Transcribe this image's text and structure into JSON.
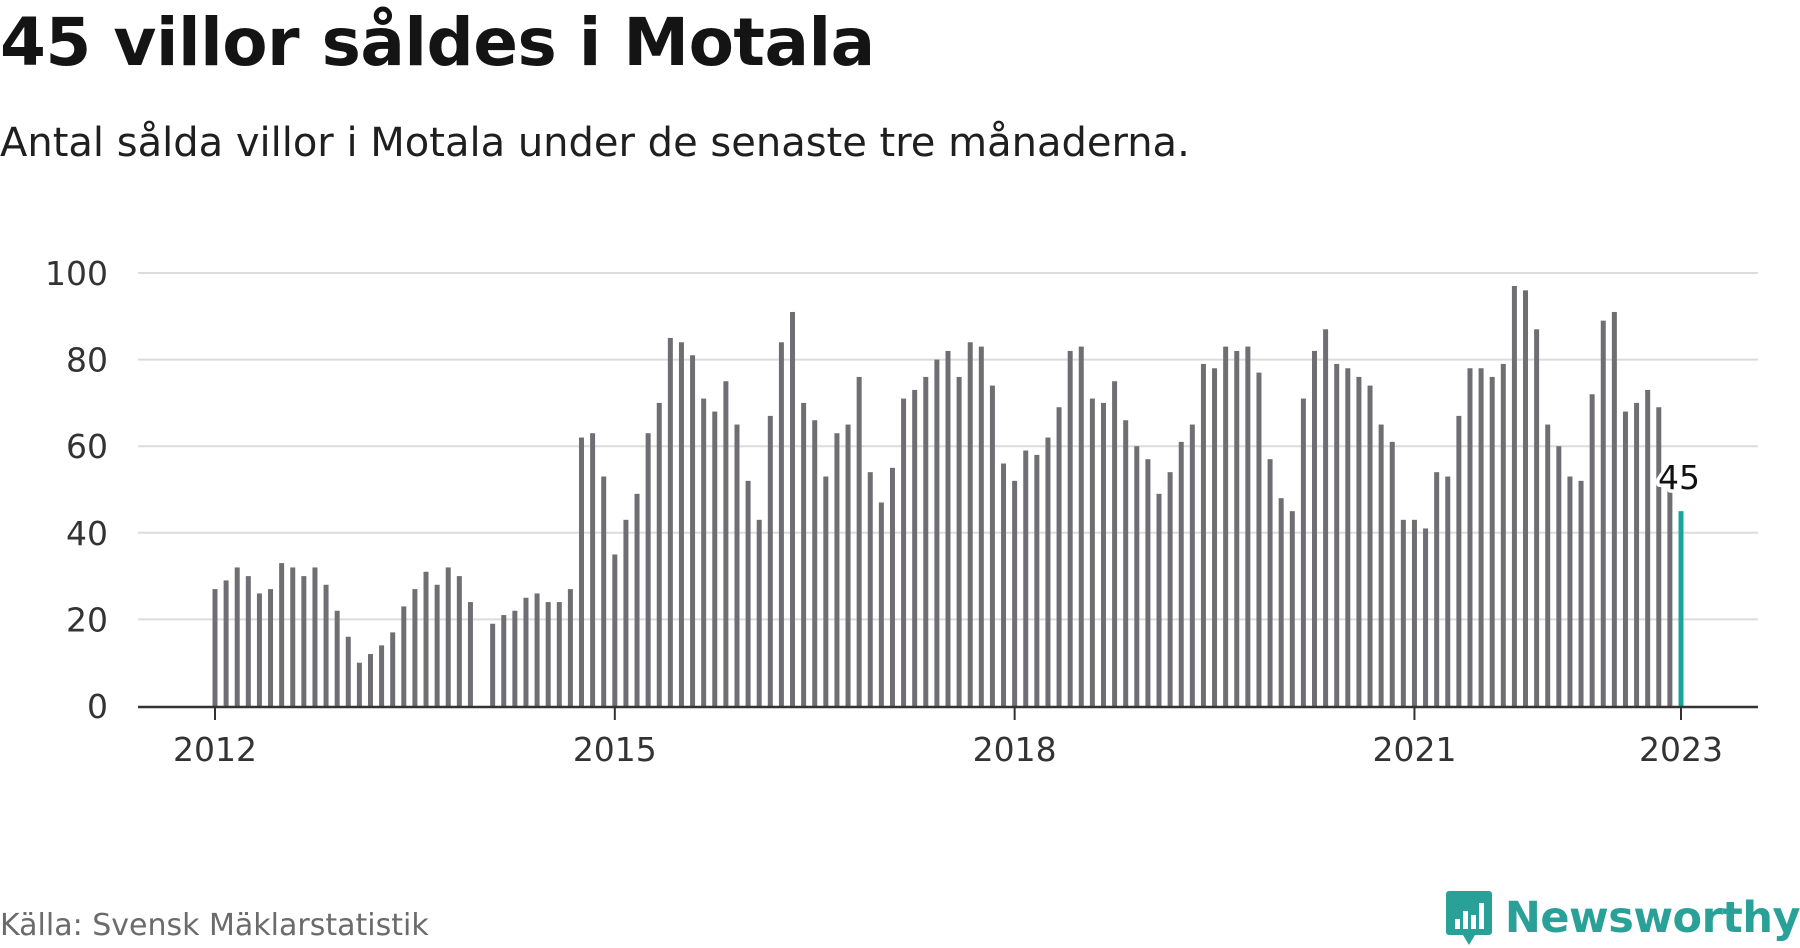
{
  "title": "45 villor såldes i Motala",
  "subtitle": "Antal sålda villor i Motala under de senaste tre månaderna.",
  "source": "Källa: Svensk Mäklarstatistik",
  "brand": {
    "name": "Newsworthy",
    "icon": "chart-speech-bubble-icon"
  },
  "colors": {
    "bar": "#6f6f73",
    "highlight": "#1aa59b",
    "grid": "#dcdcdc",
    "axis": "#333333",
    "brand": "#2aa198"
  },
  "chart_data": {
    "type": "bar",
    "title": "45 villor såldes i Motala",
    "subtitle": "Antal sålda villor i Motala under de senaste tre månaderna.",
    "xlabel": "",
    "ylabel": "",
    "ylim": [
      0,
      100
    ],
    "yticks": [
      0,
      20,
      40,
      60,
      80,
      100
    ],
    "xtick_labels": [
      "2012",
      "2015",
      "2018",
      "2021",
      "2023"
    ],
    "grid": true,
    "legend": "none",
    "x": [
      "2012-01",
      "2012-02",
      "2012-03",
      "2012-04",
      "2012-05",
      "2012-06",
      "2012-07",
      "2012-08",
      "2012-09",
      "2012-10",
      "2012-11",
      "2012-12",
      "2013-01",
      "2013-02",
      "2013-03",
      "2013-04",
      "2013-05",
      "2013-06",
      "2013-07",
      "2013-08",
      "2013-09",
      "2013-10",
      "2013-11",
      "2013-12",
      "2014-01",
      "2014-02",
      "2014-03",
      "2014-04",
      "2014-05",
      "2014-06",
      "2014-07",
      "2014-08",
      "2014-09",
      "2014-10",
      "2014-11",
      "2014-12",
      "2015-01",
      "2015-02",
      "2015-03",
      "2015-04",
      "2015-05",
      "2015-06",
      "2015-07",
      "2015-08",
      "2015-09",
      "2015-10",
      "2015-11",
      "2015-12",
      "2016-01",
      "2016-02",
      "2016-03",
      "2016-04",
      "2016-05",
      "2016-06",
      "2016-07",
      "2016-08",
      "2016-09",
      "2016-10",
      "2016-11",
      "2016-12",
      "2017-01",
      "2017-02",
      "2017-03",
      "2017-04",
      "2017-05",
      "2017-06",
      "2017-07",
      "2017-08",
      "2017-09",
      "2017-10",
      "2017-11",
      "2017-12",
      "2018-01",
      "2018-02",
      "2018-03",
      "2018-04",
      "2018-05",
      "2018-06",
      "2018-07",
      "2018-08",
      "2018-09",
      "2018-10",
      "2018-11",
      "2018-12",
      "2019-01",
      "2019-02",
      "2019-03",
      "2019-04",
      "2019-05",
      "2019-06",
      "2019-07",
      "2019-08",
      "2019-09",
      "2019-10",
      "2019-11",
      "2019-12",
      "2020-01",
      "2020-02",
      "2020-03",
      "2020-04",
      "2020-05",
      "2020-06",
      "2020-07",
      "2020-08",
      "2020-09",
      "2020-10",
      "2020-11",
      "2020-12",
      "2021-01",
      "2021-02",
      "2021-03",
      "2021-04",
      "2021-05",
      "2021-06",
      "2021-07",
      "2021-08",
      "2021-09",
      "2021-10",
      "2021-11",
      "2021-12",
      "2022-01",
      "2022-02",
      "2022-03",
      "2022-04",
      "2022-05",
      "2022-06",
      "2022-07",
      "2022-08",
      "2022-09",
      "2022-10",
      "2022-11",
      "2022-12",
      "2023-01"
    ],
    "values": [
      27,
      29,
      32,
      30,
      26,
      27,
      33,
      32,
      30,
      32,
      28,
      22,
      16,
      10,
      12,
      14,
      17,
      23,
      27,
      31,
      28,
      32,
      30,
      24,
      null,
      19,
      21,
      22,
      25,
      26,
      24,
      24,
      27,
      62,
      63,
      53,
      35,
      43,
      49,
      63,
      70,
      85,
      84,
      81,
      71,
      68,
      75,
      65,
      52,
      43,
      67,
      84,
      91,
      70,
      66,
      53,
      63,
      65,
      76,
      54,
      47,
      55,
      71,
      73,
      76,
      80,
      82,
      76,
      84,
      83,
      74,
      56,
      52,
      59,
      58,
      62,
      69,
      82,
      83,
      71,
      70,
      75,
      66,
      60,
      57,
      49,
      54,
      61,
      65,
      79,
      78,
      83,
      82,
      83,
      77,
      57,
      48,
      45,
      71,
      82,
      87,
      79,
      78,
      76,
      74,
      65,
      61,
      43,
      43,
      41,
      54,
      53,
      67,
      78,
      78,
      76,
      79,
      97,
      96,
      87,
      65,
      60,
      53,
      52,
      72,
      89,
      91,
      68,
      70,
      73,
      69,
      50,
      45
    ],
    "highlight_label": "45"
  }
}
